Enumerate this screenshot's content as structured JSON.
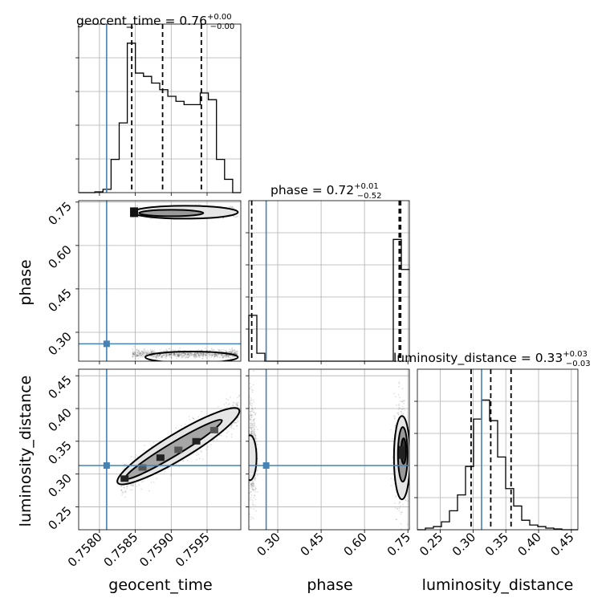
{
  "chart_data": {
    "type": "corner",
    "parameters": [
      "geocent_time",
      "phase",
      "luminosity_distance"
    ],
    "truths": {
      "geocent_time": 0.7581,
      "phase": 0.26,
      "luminosity_distance": 0.313
    },
    "titles": {
      "geocent_time": {
        "text": "geocent_time = 0.76",
        "plus": "+0.00",
        "minus": "−0.00"
      },
      "phase": {
        "text": "phase = 0.72",
        "plus": "+0.01",
        "minus": "−0.52"
      },
      "luminosity_distance": {
        "text": "luminosity_distance = 0.33",
        "plus": "+0.03",
        "minus": "−0.03"
      }
    },
    "ranges": {
      "geocent_time": [
        0.75771,
        0.75997
      ],
      "phase": [
        0.2,
        0.755
      ],
      "luminosity_distance": [
        0.215,
        0.46
      ]
    },
    "ticks": {
      "geocent_time": [
        "0.7580",
        "0.7585",
        "0.7590",
        "0.7595"
      ],
      "phase": [
        "0.30",
        "0.45",
        "0.60",
        "0.75"
      ],
      "luminosity_distance": [
        "0.25",
        "0.30",
        "0.35",
        "0.40",
        "0.45"
      ]
    },
    "quantiles": {
      "geocent_time": [
        0.75845,
        0.75888,
        0.75942
      ],
      "phase": [
        0.21,
        0.72,
        0.725
      ],
      "luminosity_distance": [
        0.297,
        0.327,
        0.358
      ]
    },
    "histograms": {
      "geocent_time": {
        "edges_start": 0.75771,
        "edges_end": 0.75997,
        "counts": [
          0,
          0,
          0.005,
          0.02,
          0.2,
          0.42,
          0.9,
          0.72,
          0.7,
          0.66,
          0.62,
          0.58,
          0.55,
          0.53,
          0.53,
          0.6,
          0.56,
          0.2,
          0.08,
          0
        ]
      },
      "phase": {
        "edges_start": 0.2,
        "edges_end": 0.755,
        "counts": [
          0.29,
          0.05,
          0,
          0,
          0,
          0,
          0,
          0,
          0,
          0,
          0,
          0,
          0,
          0,
          0,
          0,
          0,
          0,
          0.77,
          0.58
        ]
      },
      "luminosity_distance": {
        "edges_start": 0.215,
        "edges_end": 0.46,
        "counts": [
          0,
          0.01,
          0.02,
          0.05,
          0.12,
          0.22,
          0.4,
          0.7,
          0.82,
          0.69,
          0.46,
          0.26,
          0.15,
          0.06,
          0.03,
          0.02,
          0.01,
          0.005,
          0,
          0
        ]
      }
    },
    "grid": true
  }
}
